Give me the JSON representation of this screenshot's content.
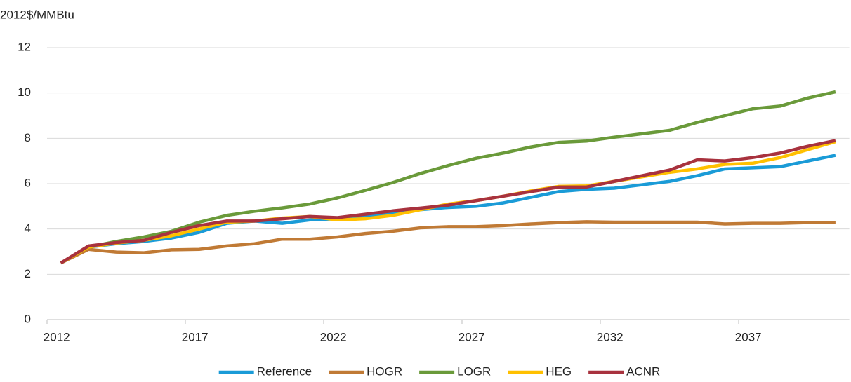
{
  "chart_data": {
    "type": "line",
    "y_axis_label": "2012$/MMBtu",
    "categories": [
      "2012",
      null,
      null,
      null,
      null,
      "2017",
      null,
      null,
      null,
      null,
      "2022",
      null,
      null,
      null,
      null,
      "2027",
      null,
      null,
      null,
      null,
      "2032",
      null,
      null,
      null,
      null,
      "2037",
      null,
      null,
      null
    ],
    "ylim": [
      0,
      12
    ],
    "yticks": [
      0,
      2,
      4,
      6,
      8,
      10,
      12
    ],
    "grid": true,
    "legend": "bottom",
    "series": [
      {
        "name": "Reference",
        "color": "#1a9bd7",
        "values": [
          2.5,
          3.2,
          3.35,
          3.45,
          3.6,
          3.85,
          4.25,
          4.35,
          4.25,
          4.4,
          4.45,
          4.55,
          4.7,
          4.85,
          4.95,
          5.0,
          5.15,
          5.4,
          5.65,
          5.75,
          5.8,
          5.95,
          6.1,
          6.35,
          6.65,
          6.7,
          6.75,
          7.0,
          7.25
        ]
      },
      {
        "name": "HOGR",
        "color": "#c07a35",
        "values": [
          2.5,
          3.1,
          2.98,
          2.95,
          3.08,
          3.1,
          3.25,
          3.35,
          3.55,
          3.55,
          3.65,
          3.8,
          3.9,
          4.05,
          4.1,
          4.1,
          4.15,
          4.22,
          4.28,
          4.32,
          4.3,
          4.3,
          4.3,
          4.3,
          4.22,
          4.25,
          4.25,
          4.28,
          4.28
        ]
      },
      {
        "name": "LOGR",
        "color": "#6a9a3a",
        "values": [
          2.5,
          3.2,
          3.45,
          3.65,
          3.9,
          4.3,
          4.6,
          4.78,
          4.93,
          5.1,
          5.37,
          5.7,
          6.05,
          6.45,
          6.8,
          7.12,
          7.35,
          7.62,
          7.82,
          7.88,
          8.05,
          8.2,
          8.35,
          8.7,
          9.0,
          9.3,
          9.42,
          9.78,
          10.05
        ]
      },
      {
        "name": "HEG",
        "color": "#ffc000",
        "values": [
          2.5,
          3.2,
          3.38,
          3.5,
          3.7,
          4.0,
          4.3,
          4.35,
          4.48,
          4.55,
          4.4,
          4.45,
          4.6,
          4.85,
          5.1,
          5.25,
          5.45,
          5.68,
          5.88,
          5.9,
          6.1,
          6.3,
          6.5,
          6.65,
          6.85,
          6.9,
          7.15,
          7.5,
          7.85
        ]
      },
      {
        "name": "ACNR",
        "color": "#a8323e",
        "values": [
          2.5,
          3.25,
          3.4,
          3.5,
          3.85,
          4.15,
          4.35,
          4.35,
          4.45,
          4.55,
          4.5,
          4.65,
          4.8,
          4.92,
          5.05,
          5.25,
          5.45,
          5.65,
          5.85,
          5.85,
          6.1,
          6.35,
          6.6,
          7.05,
          7.0,
          7.15,
          7.35,
          7.65,
          7.9
        ]
      }
    ]
  }
}
